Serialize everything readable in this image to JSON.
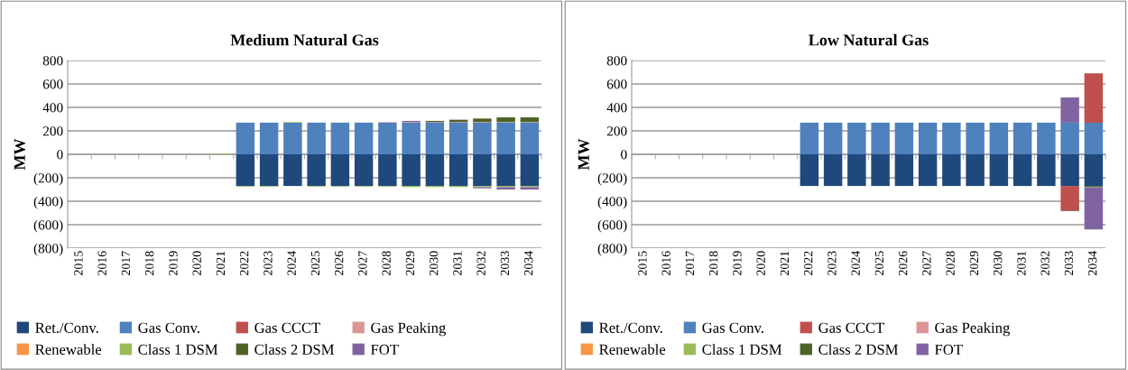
{
  "chart_data": [
    {
      "type": "bar",
      "title": "Medium Natural Gas",
      "ylabel": "MW",
      "stacked": true,
      "grid": "y",
      "legend": "bottom",
      "categories": [
        "2015",
        "2016",
        "2017",
        "2018",
        "2019",
        "2020",
        "2021",
        "2022",
        "2023",
        "2024",
        "2025",
        "2026",
        "2027",
        "2028",
        "2029",
        "2030",
        "2031",
        "2032",
        "2033",
        "2034"
      ],
      "ylim": [
        -800,
        800
      ],
      "yticks": [
        {
          "value": -800,
          "label": "(800)"
        },
        {
          "value": -600,
          "label": "(600)"
        },
        {
          "value": -400,
          "label": "(400)"
        },
        {
          "value": -200,
          "label": "(200)"
        },
        0,
        200,
        400,
        600,
        800
      ],
      "series": [
        {
          "name": "Ret./Conv.",
          "color": "#1f497d",
          "values": [
            null,
            null,
            null,
            null,
            null,
            null,
            null,
            -270,
            -270,
            -270,
            -270,
            -270,
            -270,
            -270,
            -270,
            -270,
            -270,
            -270,
            -270,
            -270
          ]
        },
        {
          "name": "Gas Conv.",
          "color": "#4f81bd",
          "values": [
            null,
            null,
            null,
            null,
            null,
            null,
            null,
            270,
            270,
            270,
            270,
            270,
            270,
            270,
            270,
            270,
            270,
            270,
            270,
            270
          ]
        },
        {
          "name": "Gas CCCT",
          "color": "#c0504d",
          "values": [
            null,
            null,
            null,
            null,
            null,
            null,
            null,
            null,
            null,
            null,
            null,
            null,
            null,
            null,
            null,
            null,
            null,
            null,
            null,
            null
          ]
        },
        {
          "name": "Gas Peaking",
          "color": "#d99694",
          "values": [
            null,
            null,
            null,
            null,
            null,
            null,
            null,
            null,
            null,
            null,
            null,
            null,
            null,
            5,
            5,
            5,
            5,
            5,
            5,
            5
          ]
        },
        {
          "name": "Renewable",
          "color": "#f79646",
          "values": [
            null,
            null,
            null,
            null,
            null,
            null,
            null,
            null,
            null,
            null,
            null,
            null,
            null,
            null,
            null,
            null,
            null,
            null,
            null,
            null
          ]
        },
        {
          "name": "Class 1 DSM",
          "color": "#9bbb59",
          "values": [
            null,
            null,
            null,
            null,
            null,
            null,
            5,
            -5,
            -5,
            5,
            -5,
            -5,
            -5,
            -5,
            -10,
            -10,
            -10,
            -10,
            -10,
            -10
          ]
        },
        {
          "name": "Class 2 DSM",
          "color": "#4f6228",
          "values": [
            null,
            null,
            null,
            null,
            null,
            null,
            null,
            null,
            null,
            null,
            null,
            null,
            null,
            null,
            null,
            10,
            20,
            30,
            40,
            40
          ]
        },
        {
          "name": "FOT",
          "color": "#8064a2",
          "values": [
            null,
            null,
            null,
            null,
            null,
            null,
            null,
            null,
            null,
            null,
            null,
            null,
            null,
            null,
            10,
            null,
            null,
            -10,
            -20,
            -20
          ]
        }
      ]
    },
    {
      "type": "bar",
      "title": "Low Natural Gas",
      "ylabel": "MW",
      "stacked": true,
      "grid": "y",
      "legend": "bottom",
      "categories": [
        "2015",
        "2016",
        "2017",
        "2018",
        "2019",
        "2020",
        "2021",
        "2022",
        "2023",
        "2024",
        "2025",
        "2026",
        "2027",
        "2028",
        "2029",
        "2030",
        "2031",
        "2032",
        "2033",
        "2034"
      ],
      "ylim": [
        -800,
        800
      ],
      "yticks": [
        {
          "value": -800,
          "label": "(800)"
        },
        {
          "value": -600,
          "label": "(600)"
        },
        {
          "value": -400,
          "label": "(400)"
        },
        {
          "value": -200,
          "label": "(200)"
        },
        0,
        200,
        400,
        600,
        800
      ],
      "series": [
        {
          "name": "Ret./Conv.",
          "color": "#1f497d",
          "values": [
            null,
            null,
            null,
            null,
            null,
            null,
            null,
            -270,
            -270,
            -270,
            -270,
            -270,
            -270,
            -270,
            -270,
            -270,
            -270,
            -270,
            -270,
            -270
          ]
        },
        {
          "name": "Gas Conv.",
          "color": "#4f81bd",
          "values": [
            null,
            null,
            null,
            null,
            null,
            null,
            null,
            270,
            270,
            270,
            270,
            270,
            270,
            270,
            270,
            270,
            270,
            270,
            270,
            270
          ]
        },
        {
          "name": "Gas CCCT",
          "color": "#c0504d",
          "values": [
            null,
            null,
            null,
            null,
            null,
            null,
            null,
            null,
            null,
            null,
            null,
            null,
            null,
            null,
            null,
            null,
            null,
            null,
            -210,
            420
          ]
        },
        {
          "name": "Gas Peaking",
          "color": "#d99694",
          "values": [
            null,
            null,
            null,
            null,
            null,
            null,
            null,
            null,
            null,
            null,
            null,
            null,
            null,
            null,
            null,
            null,
            null,
            null,
            null,
            null
          ]
        },
        {
          "name": "Renewable",
          "color": "#f79646",
          "values": [
            null,
            null,
            null,
            null,
            null,
            null,
            null,
            null,
            null,
            null,
            null,
            null,
            null,
            null,
            null,
            null,
            null,
            null,
            null,
            null
          ]
        },
        {
          "name": "Class 1 DSM",
          "color": "#9bbb59",
          "values": [
            null,
            null,
            null,
            null,
            null,
            null,
            null,
            null,
            null,
            null,
            null,
            null,
            null,
            null,
            null,
            null,
            null,
            null,
            null,
            null
          ]
        },
        {
          "name": "Class 2 DSM",
          "color": "#4f6228",
          "values": [
            null,
            null,
            null,
            null,
            null,
            null,
            null,
            null,
            null,
            null,
            null,
            null,
            null,
            null,
            null,
            null,
            null,
            null,
            -5,
            -10
          ]
        },
        {
          "name": "FOT",
          "color": "#8064a2",
          "values": [
            null,
            null,
            null,
            null,
            null,
            null,
            null,
            null,
            null,
            null,
            null,
            null,
            null,
            null,
            null,
            null,
            null,
            null,
            215,
            -360
          ]
        }
      ]
    }
  ]
}
